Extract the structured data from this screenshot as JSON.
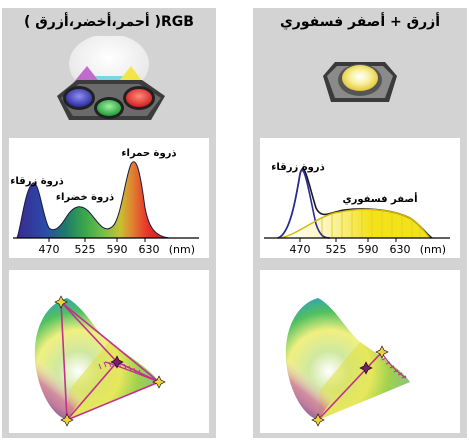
{
  "left": {
    "title": "RGB(  أحمر،أخضر،أزرق  )",
    "spectrum": {
      "xlabel": "(nm)",
      "ticks": [
        "470",
        "525",
        "590",
        "630"
      ],
      "annotations": {
        "blue_peak": "ذروة زرقاء",
        "green_peak": "ذروة خضراء",
        "red_peak": "ذروة حمراء"
      }
    }
  },
  "right": {
    "title": "أزرق + أصفر فسفوري",
    "spectrum": {
      "xlabel": "(nm)",
      "ticks": [
        "470",
        "525",
        "590",
        "630"
      ],
      "annotations": {
        "blue_peak": "ذروة زرقاء",
        "yellow_phosphor": "أصفر فسفوري"
      }
    }
  },
  "colors": {
    "panel_bg": "#d3d3d3",
    "red": "#e8312a",
    "green": "#2fa84a",
    "blue": "#3a3aa8",
    "yellow": "#f2e21a",
    "curve": "#1a1a6e",
    "locus_line": "#c0308f"
  }
}
